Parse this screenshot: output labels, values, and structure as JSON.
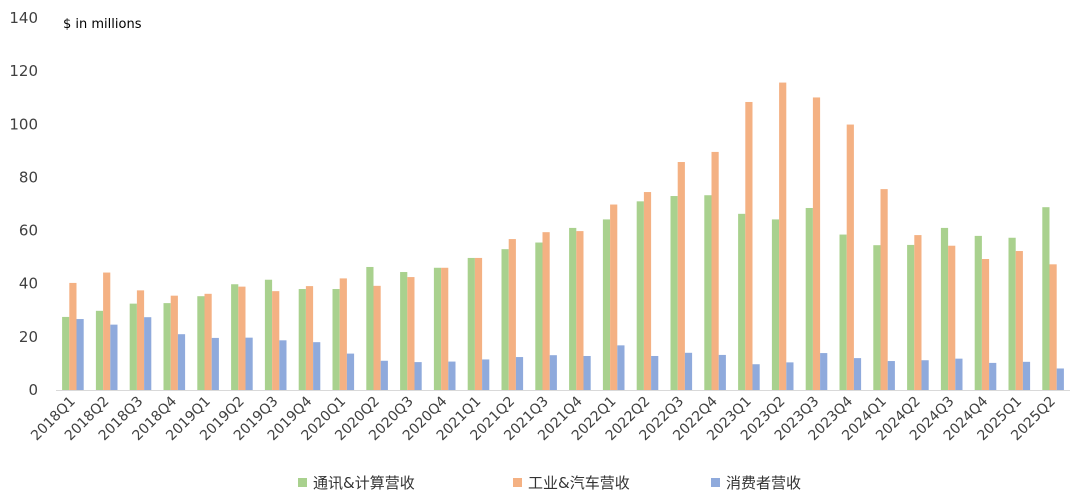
{
  "chart_data": {
    "type": "bar",
    "unit_label": "$ in millions",
    "title": "",
    "xlabel": "",
    "ylabel": "",
    "ylim": [
      0,
      140
    ],
    "yticks": [
      0,
      20,
      40,
      60,
      80,
      100,
      120,
      140
    ],
    "grid": false,
    "legend_position": "bottom",
    "categories": [
      "2018Q1",
      "2018Q2",
      "2018Q3",
      "2018Q4",
      "2019Q1",
      "2019Q2",
      "2019Q3",
      "2019Q4",
      "2020Q1",
      "2020Q2",
      "2020Q3",
      "2020Q4",
      "2021Q1",
      "2021Q2",
      "2021Q3",
      "2021Q4",
      "2022Q1",
      "2022Q2",
      "2022Q3",
      "2022Q4",
      "2023Q1",
      "2023Q2",
      "2023Q3",
      "2023Q4",
      "2024Q1",
      "2024Q2",
      "2024Q3",
      "2024Q4",
      "2025Q1",
      "2025Q2"
    ],
    "series": [
      {
        "name": "通讯&计算营收",
        "color": "#a9d18e",
        "values": [
          27.5,
          29.8,
          32.5,
          32.7,
          35.3,
          39.8,
          41.5,
          38.0,
          38.0,
          46.3,
          44.4,
          46.0,
          49.7,
          53.0,
          55.5,
          61.0,
          64.2,
          71.0,
          73.0,
          73.3,
          66.3,
          64.2,
          68.5,
          58.5,
          54.5,
          54.6,
          61.0,
          58.0,
          57.3,
          68.8
        ]
      },
      {
        "name": "工业&汽车营收",
        "color": "#f4b183",
        "values": [
          40.3,
          44.2,
          37.5,
          35.5,
          36.2,
          38.9,
          37.2,
          39.1,
          42.0,
          39.2,
          42.5,
          46.0,
          49.7,
          56.8,
          59.4,
          59.8,
          69.8,
          74.5,
          85.8,
          89.6,
          108.4,
          115.7,
          110.1,
          99.9,
          75.6,
          58.3,
          54.3,
          49.3,
          52.3,
          47.3
        ]
      },
      {
        "name": "消费者营收",
        "color": "#8faadc",
        "values": [
          26.7,
          24.6,
          27.4,
          21.0,
          19.6,
          19.7,
          18.7,
          18.0,
          13.7,
          11.0,
          10.5,
          10.7,
          11.5,
          12.4,
          13.1,
          12.8,
          16.8,
          12.8,
          14.0,
          13.2,
          9.7,
          10.4,
          13.9,
          12.0,
          10.9,
          11.2,
          11.8,
          10.2,
          10.6,
          8.1
        ]
      }
    ]
  }
}
